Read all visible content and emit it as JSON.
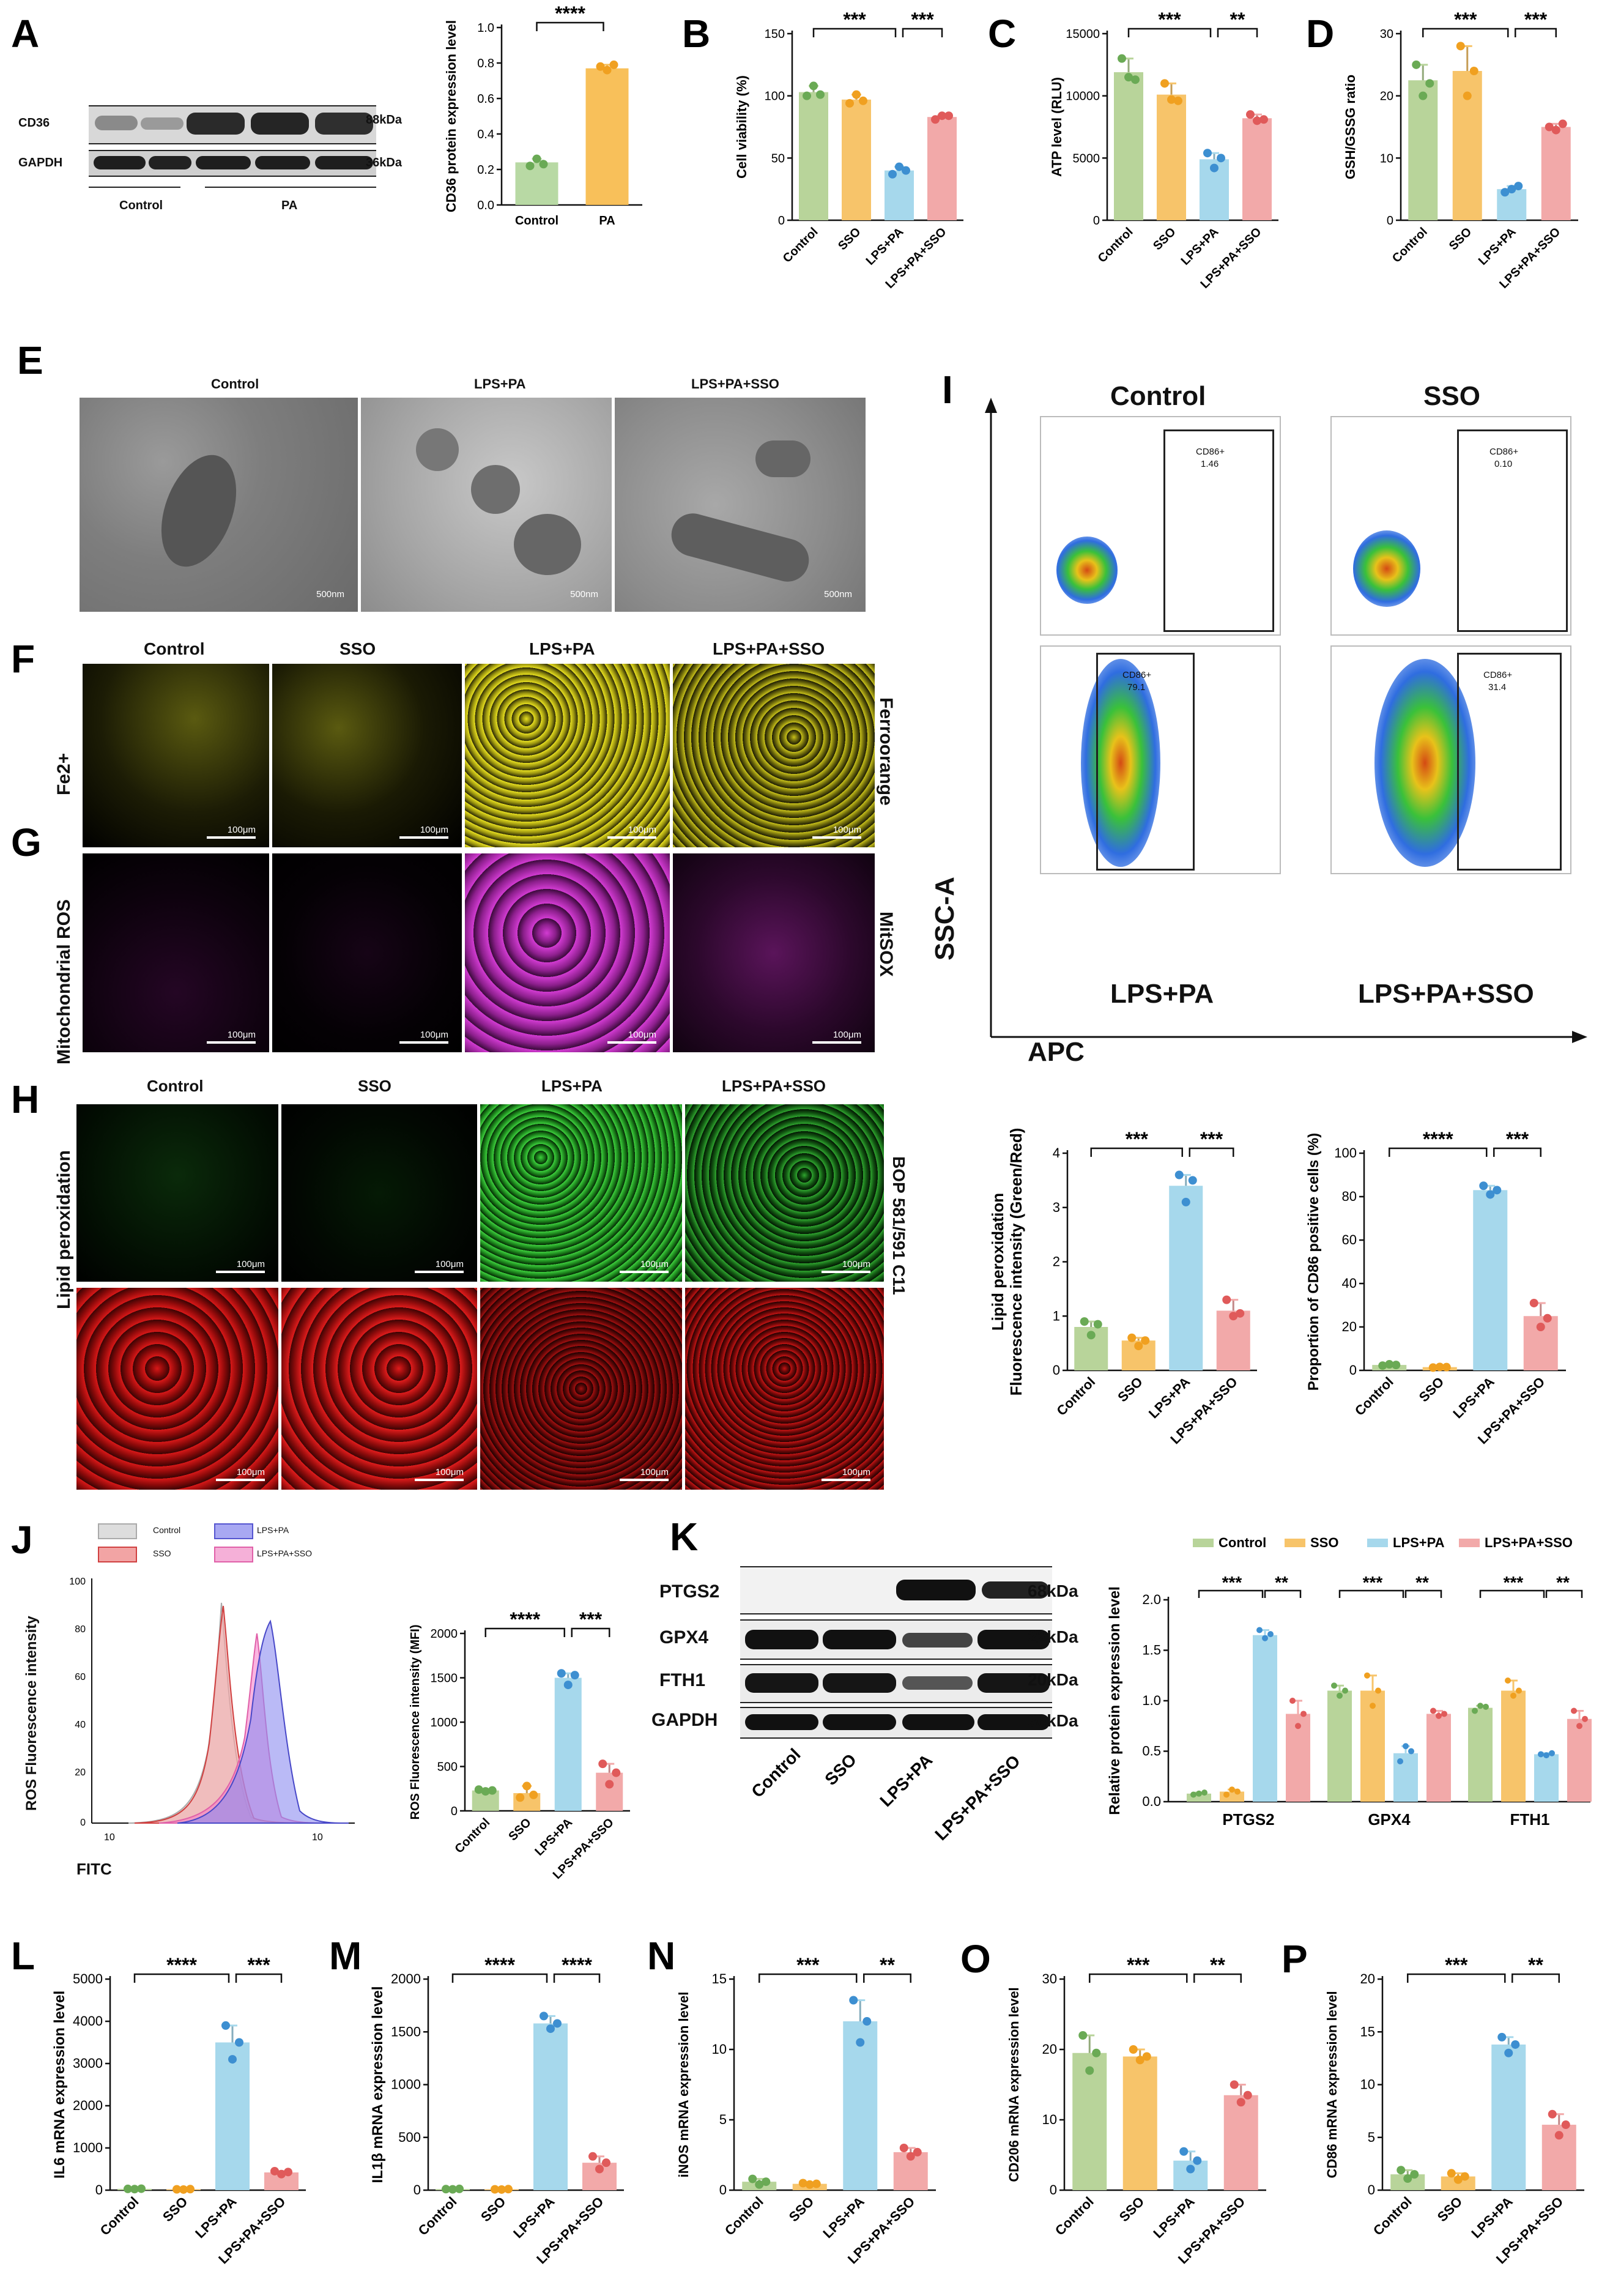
{
  "panels": {
    "A": "A",
    "B": "B",
    "C": "C",
    "D": "D",
    "E": "E",
    "F": "F",
    "G": "G",
    "H": "H",
    "I": "I",
    "J": "J",
    "K": "K",
    "L": "L",
    "M": "M",
    "N": "N",
    "O": "O",
    "P": "P"
  },
  "blotA": {
    "rows": [
      "CD36",
      "GAPDH"
    ],
    "sizes": [
      "88kDa",
      "36kDa"
    ],
    "groups": [
      "Control",
      "PA"
    ]
  },
  "panelE": {
    "labels": [
      "Control",
      "LPS+PA",
      "LPS+PA+SSO"
    ],
    "scale": "500nm"
  },
  "panelF": {
    "cols": [
      "Control",
      "SSO",
      "LPS+PA",
      "LPS+PA+SSO"
    ],
    "ylabel": "Fe2+",
    "right": "Ferroorange",
    "scale": "100μm"
  },
  "panelG": {
    "ylabel": "Mitochondrial ROS",
    "right": "MitSOX",
    "scale": "100μm"
  },
  "panelH": {
    "cols": [
      "Control",
      "SSO",
      "LPS+PA",
      "LPS+PA+SSO"
    ],
    "ylabel": "Lipid peroxidation",
    "right": "BOP 581/591 C11",
    "scale": "100μm"
  },
  "panelI": {
    "quads": [
      "Control",
      "SSO",
      "LPS+PA",
      "LPS+PA+SSO"
    ],
    "gates": [
      "CD86+\n1.46",
      "CD86+\n0.10",
      "CD86+\n79.1",
      "CD86+\n31.4"
    ],
    "gate_names": [
      "CD86+",
      "CD86+",
      "CD86+",
      "CD86+"
    ],
    "gate_vals": [
      "1.46",
      "0.10",
      "79.1",
      "31.4"
    ],
    "yaxis": "SSC-A",
    "xaxis": "APC"
  },
  "panelJ": {
    "legend": [
      "Control",
      "LPS+PA",
      "SSO",
      "LPS+PA+SSO"
    ],
    "ylabel": "ROS Fluorescence intensity",
    "xlabel": "FITC",
    "yticks": [
      "100",
      "80",
      "60",
      "40",
      "20",
      "0"
    ]
  },
  "blotK": {
    "rows": [
      "PTGS2",
      "GPX4",
      "FTH1",
      "GAPDH"
    ],
    "sizes": [
      "68kDa",
      "22kDa",
      "20kDa",
      "36kDa"
    ],
    "cols": [
      "Control",
      "SSO",
      "LPS+PA",
      "LPS+PA+SSO"
    ]
  },
  "colors": {
    "control": "#b8d49a",
    "sso": "#f7c46a",
    "lpspa": "#a6d8ec",
    "lpspasso": "#f2a9a9",
    "control_dot": "#6aaa55",
    "sso_dot": "#f0a020",
    "lpspa_dot": "#3d8fd1",
    "lpspasso_dot": "#e05a5a",
    "ctrlA": "#b8d9a4",
    "paA": "#f8c05a"
  },
  "chart_data": [
    {
      "id": "A",
      "type": "bar",
      "categories": [
        "Control",
        "PA"
      ],
      "values": [
        0.24,
        0.77
      ],
      "points": [
        [
          0.22,
          0.26,
          0.23
        ],
        [
          0.78,
          0.76,
          0.79
        ]
      ],
      "ylabel": "CD36 protein expression level",
      "ylim": [
        0,
        1.0
      ],
      "yticks": [
        0,
        0.2,
        0.4,
        0.6,
        0.8,
        1.0
      ],
      "ticklabels": [
        "0.0",
        "0.2",
        "0.4",
        "0.6",
        "0.8",
        "1.0"
      ],
      "sig": [
        {
          "from": 0,
          "to": 1,
          "label": "****"
        }
      ]
    },
    {
      "id": "B",
      "type": "bar",
      "categories": [
        "Control",
        "SSO",
        "LPS+PA",
        "LPS+PA+SSO"
      ],
      "values": [
        103,
        97,
        40,
        83
      ],
      "points": [
        [
          100,
          108,
          101
        ],
        [
          94,
          101,
          96
        ],
        [
          37,
          43,
          40
        ],
        [
          81,
          84,
          84
        ]
      ],
      "ylabel": "Cell viability   (%)",
      "ylim": [
        0,
        150
      ],
      "yticks": [
        0,
        50,
        100,
        150
      ],
      "ticklabels": [
        "0",
        "50",
        "100",
        "150"
      ],
      "sig": [
        {
          "from": 0,
          "to": 2,
          "label": "***"
        },
        {
          "from": 2,
          "to": 3,
          "label": "***"
        }
      ]
    },
    {
      "id": "C",
      "type": "bar",
      "categories": [
        "Control",
        "SSO",
        "LPS+PA",
        "LPS+PA+SSO"
      ],
      "values": [
        11900,
        10100,
        4900,
        8200
      ],
      "points": [
        [
          13000,
          11500,
          11300
        ],
        [
          11000,
          9700,
          9600
        ],
        [
          5400,
          4200,
          5000
        ],
        [
          8500,
          8000,
          8100
        ]
      ],
      "ylabel": "ATP level (RLU)",
      "ylim": [
        0,
        15000
      ],
      "yticks": [
        0,
        5000,
        10000,
        15000
      ],
      "ticklabels": [
        "0",
        "5000",
        "10000",
        "15000"
      ],
      "sig": [
        {
          "from": 0,
          "to": 2,
          "label": "***"
        },
        {
          "from": 2,
          "to": 3,
          "label": "**"
        }
      ]
    },
    {
      "id": "D",
      "type": "bar",
      "categories": [
        "Control",
        "SSO",
        "LPS+PA",
        "LPS+PA+SSO"
      ],
      "values": [
        22.5,
        24,
        5,
        15
      ],
      "points": [
        [
          25,
          20,
          22
        ],
        [
          28,
          20,
          24
        ],
        [
          4.5,
          5,
          5.5
        ],
        [
          15,
          14.5,
          15.5
        ]
      ],
      "ylabel": "GSH/GSSG ratio",
      "ylim": [
        0,
        30
      ],
      "yticks": [
        0,
        10,
        20,
        30
      ],
      "ticklabels": [
        "0",
        "10",
        "20",
        "30"
      ],
      "sig": [
        {
          "from": 0,
          "to": 2,
          "label": "***"
        },
        {
          "from": 2,
          "to": 3,
          "label": "***"
        }
      ]
    },
    {
      "id": "H1",
      "type": "bar",
      "categories": [
        "Control",
        "SSO",
        "LPS+PA",
        "LPS+PA+SSO"
      ],
      "values": [
        0.8,
        0.55,
        3.4,
        1.1
      ],
      "points": [
        [
          0.9,
          0.65,
          0.85
        ],
        [
          0.6,
          0.45,
          0.55
        ],
        [
          3.6,
          3.1,
          3.5
        ],
        [
          1.3,
          1.0,
          1.05
        ]
      ],
      "ylabel": "Lipid peroxidation\nFluorescence intensity  (Green/Red)",
      "ylim": [
        0,
        4
      ],
      "yticks": [
        0,
        1,
        2,
        3,
        4
      ],
      "ticklabels": [
        "0",
        "1",
        "2",
        "3",
        "4"
      ],
      "sig": [
        {
          "from": 0,
          "to": 2,
          "label": "***"
        },
        {
          "from": 2,
          "to": 3,
          "label": "***"
        }
      ]
    },
    {
      "id": "I2",
      "type": "bar",
      "categories": [
        "Control",
        "SSO",
        "LPS+PA",
        "LPS+PA+SSO"
      ],
      "values": [
        2.5,
        1.5,
        83,
        25
      ],
      "points": [
        [
          2.2,
          2.8,
          2.5
        ],
        [
          1.3,
          1.6,
          1.5
        ],
        [
          85,
          81,
          83
        ],
        [
          31,
          20,
          24
        ]
      ],
      "ylabel": "Proportion of CD86 positive cells (%)",
      "ylim": [
        0,
        100
      ],
      "yticks": [
        0,
        20,
        40,
        60,
        80,
        100
      ],
      "ticklabels": [
        "0",
        "20",
        "40",
        "60",
        "80",
        "100"
      ],
      "sig": [
        {
          "from": 0,
          "to": 2,
          "label": "****"
        },
        {
          "from": 2,
          "to": 3,
          "label": "***"
        }
      ]
    },
    {
      "id": "J2",
      "type": "bar",
      "categories": [
        "Control",
        "SSO",
        "LPS+PA",
        "LPS+PA+SSO"
      ],
      "values": [
        230,
        200,
        1500,
        430
      ],
      "points": [
        [
          240,
          220,
          230
        ],
        [
          150,
          280,
          180
        ],
        [
          1550,
          1420,
          1530
        ],
        [
          530,
          300,
          430
        ]
      ],
      "ylabel": "ROS Fluorescence intensity (MFI)",
      "ylim": [
        0,
        2000
      ],
      "yticks": [
        0,
        500,
        1000,
        1500,
        2000
      ],
      "ticklabels": [
        "0",
        "500",
        "1000",
        "1500",
        "2000"
      ],
      "sig": [
        {
          "from": 0,
          "to": 2,
          "label": "****"
        },
        {
          "from": 2,
          "to": 3,
          "label": "***"
        }
      ]
    },
    {
      "id": "K2",
      "type": "grouped_bar",
      "categories": [
        "PTGS2",
        "GPX4",
        "FTH1"
      ],
      "series": [
        {
          "name": "Control",
          "values": [
            0.08,
            1.1,
            0.93
          ],
          "points": [
            [
              0.07,
              0.08,
              0.09
            ],
            [
              1.15,
              1.05,
              1.1
            ],
            [
              0.9,
              0.95,
              0.94
            ]
          ]
        },
        {
          "name": "SSO",
          "values": [
            0.1,
            1.1,
            1.1
          ],
          "points": [
            [
              0.07,
              0.12,
              0.1
            ],
            [
              1.25,
              0.95,
              1.1
            ],
            [
              1.2,
              1.05,
              1.1
            ]
          ]
        },
        {
          "name": "LPS+PA",
          "values": [
            1.65,
            0.48,
            0.47
          ],
          "points": [
            [
              1.7,
              1.62,
              1.66
            ],
            [
              0.4,
              0.55,
              0.5
            ],
            [
              0.47,
              0.46,
              0.48
            ]
          ]
        },
        {
          "name": "LPS+PA+SSO",
          "values": [
            0.87,
            0.87,
            0.82
          ],
          "points": [
            [
              1.0,
              0.75,
              0.87
            ],
            [
              0.9,
              0.85,
              0.87
            ],
            [
              0.9,
              0.75,
              0.82
            ]
          ]
        }
      ],
      "ylabel": "Relative protein expression level",
      "ylim": [
        0,
        2.0
      ],
      "yticks": [
        0,
        0.5,
        1.0,
        1.5,
        2.0
      ],
      "ticklabels": [
        "0.0",
        "0.5",
        "1.0",
        "1.5",
        "2.0"
      ],
      "sigs": [
        [
          {
            "a": 0,
            "b": 2,
            "label": "***"
          },
          {
            "a": 2,
            "b": 3,
            "label": "**"
          }
        ],
        [
          {
            "a": 0,
            "b": 2,
            "label": "***"
          },
          {
            "a": 2,
            "b": 3,
            "label": "**"
          }
        ],
        [
          {
            "a": 0,
            "b": 2,
            "label": "***"
          },
          {
            "a": 2,
            "b": 3,
            "label": "**"
          }
        ]
      ]
    },
    {
      "id": "L",
      "type": "bar",
      "categories": [
        "Control",
        "SSO",
        "LPS+PA",
        "LPS+PA+SSO"
      ],
      "values": [
        30,
        20,
        3500,
        420
      ],
      "points": [
        [
          30,
          25,
          35
        ],
        [
          20,
          15,
          25
        ],
        [
          3900,
          3100,
          3500
        ],
        [
          450,
          380,
          430
        ]
      ],
      "ylabel": "IL6 mRNA expression level",
      "ylim": [
        0,
        5000
      ],
      "yticks": [
        0,
        1000,
        2000,
        3000,
        4000,
        5000
      ],
      "ticklabels": [
        "0",
        "1000",
        "2000",
        "3000",
        "4000",
        "5000"
      ],
      "sig": [
        {
          "from": 0,
          "to": 2,
          "label": "****"
        },
        {
          "from": 2,
          "to": 3,
          "label": "***"
        }
      ]
    },
    {
      "id": "M",
      "type": "bar",
      "categories": [
        "Control",
        "SSO",
        "LPS+PA",
        "LPS+PA+SSO"
      ],
      "values": [
        10,
        8,
        1580,
        260
      ],
      "points": [
        [
          10,
          8,
          12
        ],
        [
          8,
          6,
          10
        ],
        [
          1650,
          1530,
          1580
        ],
        [
          320,
          200,
          260
        ]
      ],
      "ylabel": "IL1β mRNA expression level",
      "ylim": [
        0,
        2000
      ],
      "yticks": [
        0,
        500,
        1000,
        1500,
        2000
      ],
      "ticklabels": [
        "0",
        "500",
        "1000",
        "1500",
        "2000"
      ],
      "sig": [
        {
          "from": 0,
          "to": 2,
          "label": "****"
        },
        {
          "from": 2,
          "to": 3,
          "label": "****"
        }
      ]
    },
    {
      "id": "N",
      "type": "bar",
      "categories": [
        "Control",
        "SSO",
        "LPS+PA",
        "LPS+PA+SSO"
      ],
      "values": [
        0.6,
        0.45,
        12,
        2.7
      ],
      "points": [
        [
          0.8,
          0.4,
          0.6
        ],
        [
          0.5,
          0.4,
          0.45
        ],
        [
          13.5,
          10.5,
          12
        ],
        [
          3.0,
          2.4,
          2.7
        ]
      ],
      "ylabel": "iNOS mRNA expression level",
      "ylim": [
        0,
        15
      ],
      "yticks": [
        0,
        5,
        10,
        15
      ],
      "ticklabels": [
        "0",
        "5",
        "10",
        "15"
      ],
      "sig": [
        {
          "from": 0,
          "to": 2,
          "label": "***"
        },
        {
          "from": 2,
          "to": 3,
          "label": "**"
        }
      ]
    },
    {
      "id": "O",
      "type": "bar",
      "categories": [
        "Control",
        "SSO",
        "LPS+PA",
        "LPS+PA+SSO"
      ],
      "values": [
        19.5,
        19,
        4.2,
        13.5
      ],
      "points": [
        [
          22,
          17,
          19.5
        ],
        [
          20,
          18.5,
          19
        ],
        [
          5.5,
          3,
          4.2
        ],
        [
          15,
          12.5,
          13.5
        ]
      ],
      "ylabel": "CD206 mRNA expression level",
      "ylim": [
        0,
        30
      ],
      "yticks": [
        0,
        10,
        20,
        30
      ],
      "ticklabels": [
        "0",
        "10",
        "20",
        "30"
      ],
      "sig": [
        {
          "from": 0,
          "to": 2,
          "label": "***"
        },
        {
          "from": 2,
          "to": 3,
          "label": "**"
        }
      ]
    },
    {
      "id": "P",
      "type": "bar",
      "categories": [
        "Control",
        "SSO",
        "LPS+PA",
        "LPS+PA+SSO"
      ],
      "values": [
        1.5,
        1.3,
        13.8,
        6.2
      ],
      "points": [
        [
          1.9,
          1.1,
          1.5
        ],
        [
          1.6,
          1.0,
          1.3
        ],
        [
          14.5,
          13,
          13.8
        ],
        [
          7.2,
          5.2,
          6.2
        ]
      ],
      "ylabel": "CD86 mRNA expression level",
      "ylim": [
        0,
        20
      ],
      "yticks": [
        0,
        5,
        10,
        15,
        20
      ],
      "ticklabels": [
        "0",
        "5",
        "10",
        "15",
        "20"
      ],
      "sig": [
        {
          "from": 0,
          "to": 2,
          "label": "***"
        },
        {
          "from": 2,
          "to": 3,
          "label": "**"
        }
      ]
    }
  ]
}
